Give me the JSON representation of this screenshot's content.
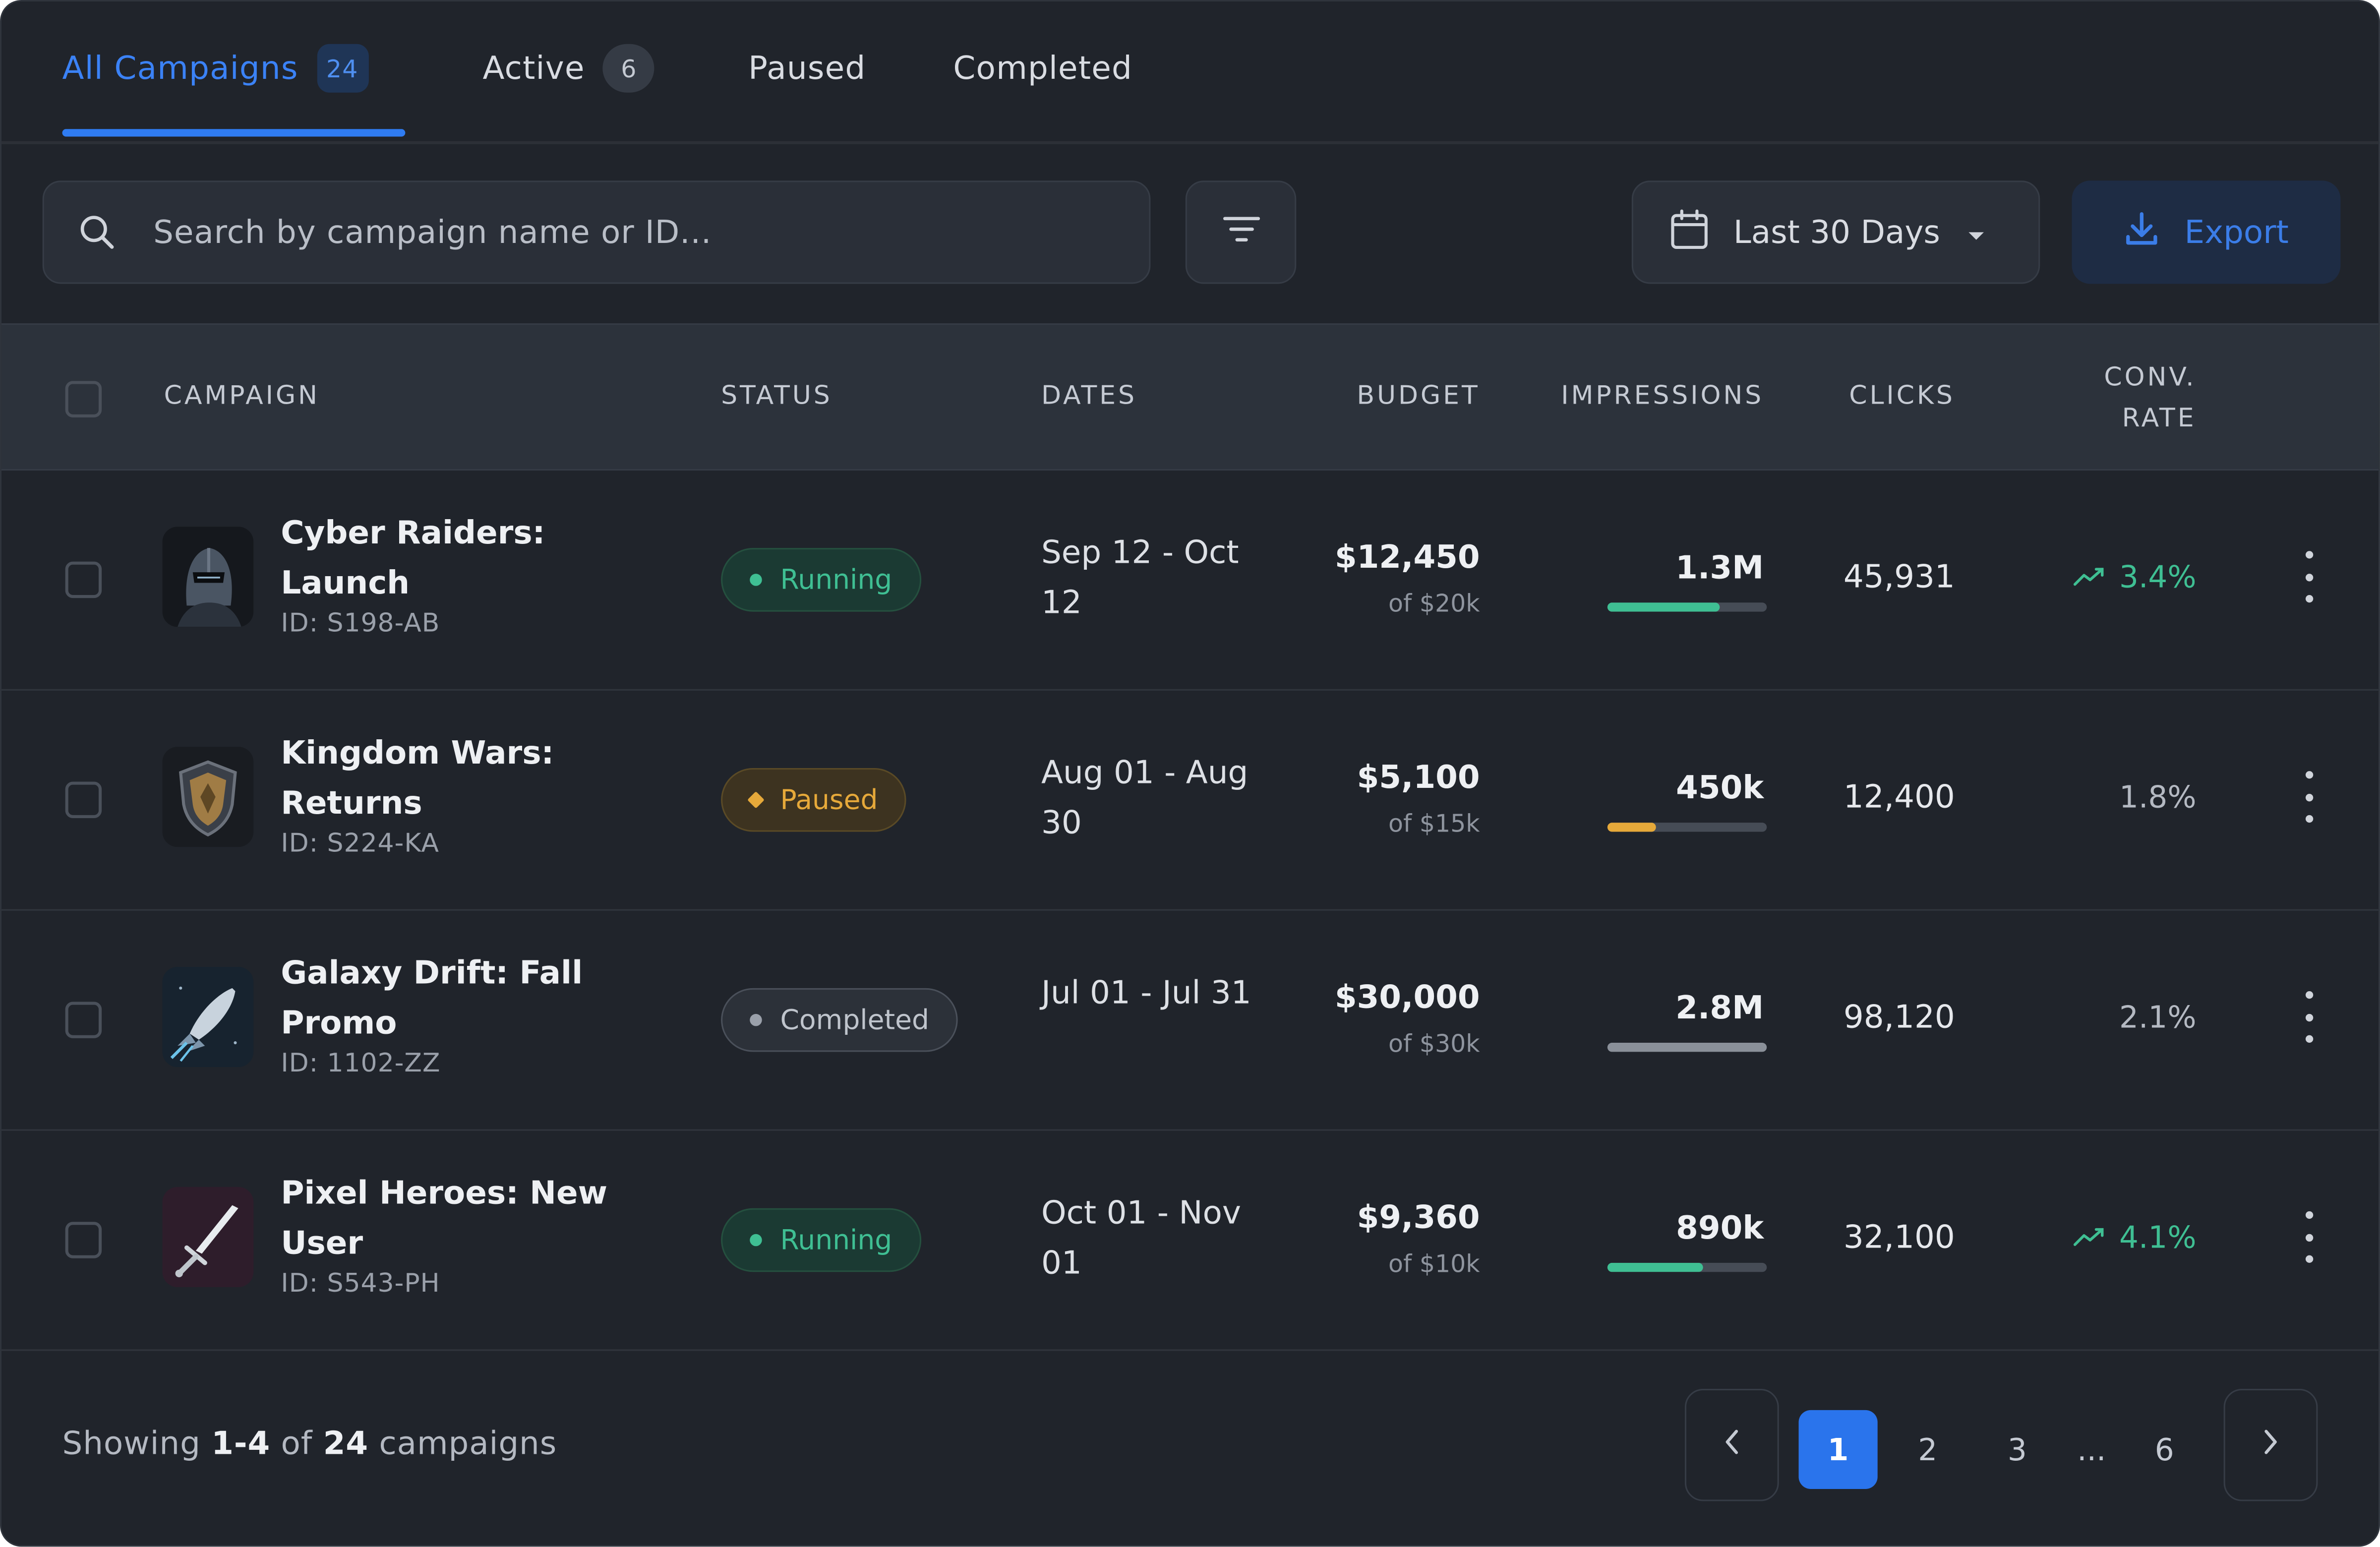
{
  "tabs": [
    {
      "label": "All Campaigns",
      "count": "24"
    },
    {
      "label": "Active",
      "count": "6"
    },
    {
      "label": "Paused",
      "count": ""
    },
    {
      "label": "Completed",
      "count": ""
    }
  ],
  "toolbar": {
    "search_placeholder": "Search by campaign name or ID...",
    "date_range": "Last 30 Days",
    "export_label": "Export",
    "icons": {
      "search": "search-icon",
      "filter": "filter-icon",
      "calendar": "calendar-icon",
      "caret": "caret-down-icon",
      "export": "download-icon"
    }
  },
  "table": {
    "headers": {
      "campaign": "CAMPAIGN",
      "status": "STATUS",
      "dates": "DATES",
      "budget": "BUDGET",
      "impressions": "IMPRESSIONS",
      "clicks": "CLICKS",
      "conv_line1": "CONV.",
      "conv_line2": "RATE"
    },
    "rows": [
      {
        "name": "Cyber Raiders: Launch",
        "id": "ID: S198-AB",
        "thumb_icon": "knight-helmet-icon",
        "status": "Running",
        "dates": "Sep 12 - Oct 12",
        "budget": "$12,450",
        "budget_of": "of $20k",
        "impressions": "1.3M",
        "impressions_progress": 0.7,
        "clicks": "45,931",
        "conv_rate": "3.4%",
        "conv_trend": "up"
      },
      {
        "name": "Kingdom Wars: Returns",
        "id": "ID: S224-KA",
        "thumb_icon": "shield-icon",
        "status": "Paused",
        "dates": "Aug 01 - Aug 30",
        "budget": "$5,100",
        "budget_of": "of $15k",
        "impressions": "450k",
        "impressions_progress": 0.3,
        "clicks": "12,400",
        "conv_rate": "1.8%",
        "conv_trend": "none"
      },
      {
        "name": "Galaxy Drift: Fall Promo",
        "id": "ID: 1102-ZZ",
        "thumb_icon": "rocket-icon",
        "status": "Completed",
        "dates": "Jul 01 - Jul 31",
        "budget": "$30,000",
        "budget_of": "of $30k",
        "impressions": "2.8M",
        "impressions_progress": 1.0,
        "clicks": "98,120",
        "conv_rate": "2.1%",
        "conv_trend": "none"
      },
      {
        "name": "Pixel Heroes: New User",
        "id": "ID: S543-PH",
        "thumb_icon": "sword-icon",
        "status": "Running",
        "dates": "Oct 01 - Nov 01",
        "budget": "$9,360",
        "budget_of": "of $10k",
        "impressions": "890k",
        "impressions_progress": 0.6,
        "clicks": "32,100",
        "conv_rate": "4.1%",
        "conv_trend": "up"
      }
    ]
  },
  "footer": {
    "showing_prefix": "Showing",
    "showing_range": "1-4",
    "showing_of": "of",
    "showing_total": "24",
    "showing_suffix": "campaigns",
    "pages": [
      "1",
      "2",
      "3",
      "...",
      "6"
    ],
    "current_page": "1"
  },
  "colors": {
    "background": "#20242b",
    "accent": "#2f7cf2",
    "running": "#3fbf93",
    "paused": "#e6a93a",
    "completed": "#9aa0aa"
  }
}
